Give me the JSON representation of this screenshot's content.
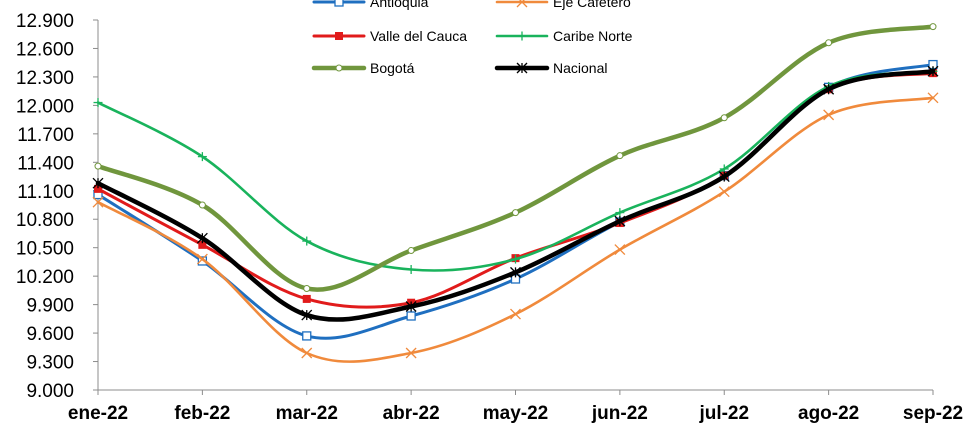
{
  "chart_data": {
    "type": "line",
    "categories": [
      "ene-22",
      "feb-22",
      "mar-22",
      "abr-22",
      "may-22",
      "jun-22",
      "jul-22",
      "ago-22",
      "sep-22"
    ],
    "ylim": [
      9000,
      12900
    ],
    "yticks": [
      9000,
      9300,
      9600,
      9900,
      10200,
      10500,
      10800,
      11100,
      11400,
      11700,
      12000,
      12300,
      12600,
      12900
    ],
    "ytick_labels": [
      "9.000",
      "9.300",
      "9.600",
      "9.900",
      "10.200",
      "10.500",
      "10.800",
      "11.100",
      "11.400",
      "11.700",
      "12.000",
      "12.300",
      "12.600",
      "12.900"
    ],
    "xlabel": "",
    "ylabel": "",
    "grid": false,
    "legend_position": "top",
    "series": [
      {
        "name": "Antioquia",
        "color": "#1f6fc0",
        "marker": "square",
        "values": [
          11060,
          10360,
          9570,
          9780,
          10170,
          10770,
          11260,
          12190,
          12430
        ]
      },
      {
        "name": "Eje Cafetero",
        "color": "#f08a3c",
        "marker": "x",
        "values": [
          10980,
          10380,
          9390,
          9390,
          9800,
          10480,
          11090,
          11900,
          12080
        ]
      },
      {
        "name": "Valle del Cauca",
        "color": "#e11b1b",
        "marker": "filled-square",
        "values": [
          11120,
          10530,
          9960,
          9920,
          10390,
          10760,
          11260,
          12170,
          12340
        ]
      },
      {
        "name": "Caribe Norte",
        "color": "#19b35c",
        "marker": "plus",
        "values": [
          12030,
          11460,
          10570,
          10270,
          10380,
          10870,
          11330,
          12200,
          12360
        ]
      },
      {
        "name": "Bogotá",
        "color": "#70963d",
        "marker": "circle",
        "values": [
          11360,
          10950,
          10070,
          10470,
          10870,
          11470,
          11870,
          12660,
          12830
        ]
      },
      {
        "name": "Nacional",
        "color": "#000000",
        "marker": "star",
        "values": [
          11180,
          10600,
          9790,
          9880,
          10240,
          10780,
          11250,
          12170,
          12360
        ]
      }
    ]
  }
}
